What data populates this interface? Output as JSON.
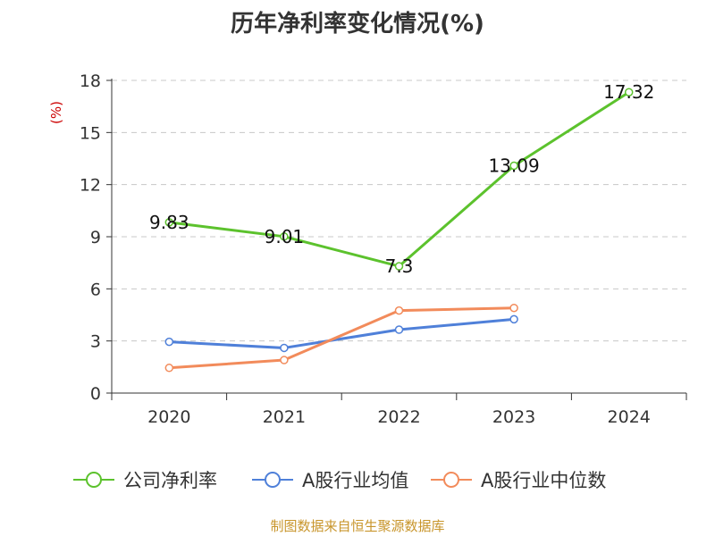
{
  "title": "历年净利率变化情况(%)",
  "source": "制图数据来自恒生聚源数据库",
  "chart_data": {
    "type": "line",
    "ylabel": "(%)",
    "ylim": [
      0,
      18
    ],
    "yticks": [
      0,
      3,
      6,
      9,
      12,
      15,
      18
    ],
    "grid": true,
    "legend_position": "bottom",
    "categories": [
      "2020",
      "2021",
      "2022",
      "2023",
      "2024"
    ],
    "series": [
      {
        "name": "公司净利率",
        "color": "#5cc22d",
        "values": [
          9.83,
          9.01,
          7.3,
          13.09,
          17.32
        ],
        "labels": [
          "9.83",
          "9.01",
          "7.3",
          "13.09",
          "17.32"
        ]
      },
      {
        "name": "A股行业均值",
        "color": "#4f80d9",
        "values": [
          2.95,
          2.6,
          3.65,
          4.25,
          null
        ]
      },
      {
        "name": "A股行业中位数",
        "color": "#f28b5b",
        "values": [
          1.45,
          1.9,
          4.75,
          4.9,
          null
        ]
      }
    ]
  }
}
